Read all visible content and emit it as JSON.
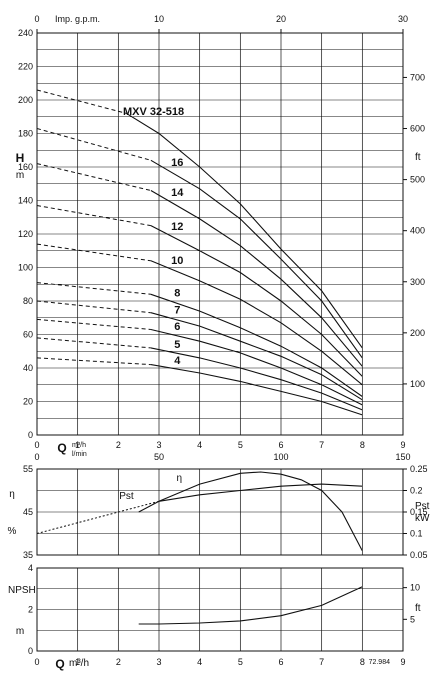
{
  "chart_data": [
    {
      "panel": "head",
      "type": "line",
      "title": "MXV 32-518",
      "x_axis": {
        "label_unit": "m³/h",
        "label_letter": "Q",
        "range": [
          0,
          9
        ],
        "ticks": [
          0,
          1,
          2,
          3,
          4,
          5,
          6,
          7,
          8,
          9
        ]
      },
      "x_axis2": {
        "label": "l/min",
        "range": [
          0,
          150
        ],
        "ticks": [
          0,
          50,
          100,
          150
        ]
      },
      "x_axis_top": {
        "label": "Imp. g.p.m.",
        "range": [
          0,
          30
        ],
        "ticks": [
          0,
          10,
          20,
          30
        ]
      },
      "y_axis": {
        "label_letter": "H",
        "label_unit": "m",
        "range": [
          0,
          240
        ],
        "ticks": [
          0,
          20,
          40,
          60,
          80,
          100,
          120,
          140,
          160,
          180,
          200,
          220,
          240
        ]
      },
      "y_axis_right": {
        "label": "ft",
        "range": [
          0,
          787
        ],
        "ticks": [
          100,
          200,
          300,
          400,
          500,
          600,
          700
        ]
      },
      "grid": true,
      "series": [
        {
          "name": "16",
          "dashed_x": [
            0,
            2.8
          ],
          "x": [
            2.8,
            4,
            5,
            6,
            7,
            8
          ],
          "y": [
            164,
            147,
            129,
            105,
            80,
            46
          ]
        },
        {
          "name": "14",
          "dashed_x": [
            0,
            2.8
          ],
          "x": [
            2.8,
            4,
            5,
            6,
            7,
            8
          ],
          "y": [
            146,
            129,
            113,
            93,
            70,
            41
          ]
        },
        {
          "name": "12",
          "dashed_x": [
            0,
            2.8
          ],
          "x": [
            2.8,
            4,
            5,
            6,
            7,
            8
          ],
          "y": [
            125,
            110,
            97,
            80,
            60,
            35
          ]
        },
        {
          "name": "10",
          "dashed_x": [
            0,
            2.8
          ],
          "x": [
            2.8,
            4,
            5,
            6,
            7,
            8
          ],
          "y": [
            104,
            92,
            81,
            67,
            50,
            30
          ]
        },
        {
          "name": "8",
          "dashed_x": [
            0,
            2.8
          ],
          "x": [
            2.8,
            4,
            5,
            6,
            7,
            8
          ],
          "y": [
            84,
            74,
            64,
            53,
            40,
            23
          ]
        },
        {
          "name": "7",
          "dashed_x": [
            0,
            2.8
          ],
          "x": [
            2.8,
            4,
            5,
            6,
            7,
            8
          ],
          "y": [
            73,
            65,
            56,
            47,
            36,
            21
          ]
        },
        {
          "name": "6",
          "dashed_x": [
            0,
            2.8
          ],
          "x": [
            2.8,
            4,
            5,
            6,
            7,
            8
          ],
          "y": [
            63,
            56,
            49,
            40,
            30,
            18
          ]
        },
        {
          "name": "5",
          "dashed_x": [
            0,
            2.8
          ],
          "x": [
            2.8,
            4,
            5,
            6,
            7,
            8
          ],
          "y": [
            52,
            46,
            40,
            33,
            25,
            15
          ]
        },
        {
          "name": "4",
          "dashed_x": [
            0,
            2.8
          ],
          "x": [
            2.8,
            4,
            5,
            6,
            7,
            8
          ],
          "y": [
            42,
            37,
            32,
            26,
            20,
            12
          ]
        }
      ],
      "dashed_start_y": [
        206,
        183,
        162,
        137,
        114,
        91,
        80,
        69,
        58,
        46
      ],
      "dashed_to_title_end": [
        [
          0,
          206
        ],
        [
          2.2,
          192
        ]
      ],
      "title_curve": {
        "x": [
          2.2,
          3,
          4,
          5,
          6,
          7,
          8
        ],
        "y": [
          192,
          180,
          160,
          138,
          111,
          86,
          52
        ]
      }
    },
    {
      "panel": "efficiency",
      "type": "line",
      "y_axis": {
        "label": "η",
        "unit": "%",
        "range": [
          35,
          55
        ],
        "ticks": [
          35,
          45,
          55
        ]
      },
      "y_axis_right": {
        "label": "Pst",
        "unit": "kW",
        "range": [
          0.05,
          0.25
        ],
        "ticks": [
          0.05,
          0.1,
          0.15,
          0.2,
          0.25
        ]
      },
      "series": [
        {
          "name": "η",
          "x": [
            2.5,
            3,
            4,
            5,
            5.5,
            6,
            6.5,
            7,
            7.5,
            8
          ],
          "y": [
            45,
            47.5,
            51.5,
            54,
            54.3,
            53.8,
            52.5,
            50,
            45,
            36
          ]
        },
        {
          "name": "Pst",
          "x": [
            3,
            4,
            5,
            6,
            7,
            8
          ],
          "y": [
            0.175,
            0.19,
            0.2,
            0.21,
            0.215,
            0.21
          ],
          "dashed_x": [
            0,
            3
          ],
          "dashed_y": [
            0.1,
            0.175
          ]
        }
      ]
    },
    {
      "panel": "npsh",
      "type": "line",
      "y_axis": {
        "label": "NPSH",
        "unit": "m",
        "range": [
          0,
          4
        ],
        "ticks": [
          0,
          2,
          4
        ]
      },
      "y_axis_right": {
        "label": "ft",
        "range": [
          0,
          13.1
        ],
        "ticks": [
          5,
          10
        ]
      },
      "x_axis": {
        "label_letter": "Q",
        "label_unit": "m³/h",
        "range": [
          0,
          9
        ],
        "ticks": [
          0,
          1,
          2,
          3,
          4,
          5,
          6,
          7,
          8,
          9
        ]
      },
      "series": [
        {
          "name": "NPSH",
          "x": [
            2.5,
            3,
            4,
            5,
            6,
            7,
            8
          ],
          "y": [
            1.3,
            1.3,
            1.35,
            1.45,
            1.7,
            2.2,
            3.1
          ]
        }
      ],
      "footnote": "72.984"
    }
  ]
}
